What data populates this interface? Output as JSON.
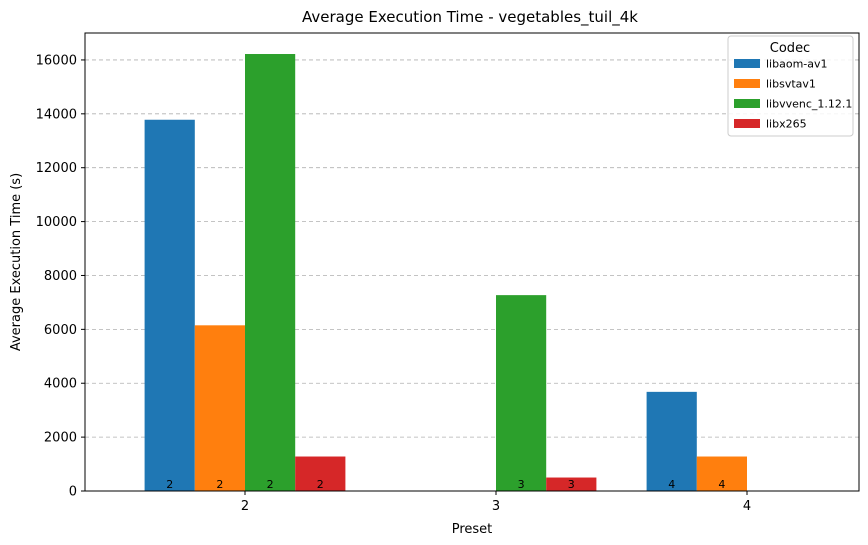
{
  "chart_data": {
    "type": "bar",
    "title": "Average Execution Time - vegetables_tuil_4k",
    "xlabel": "Preset",
    "ylabel": "Average Execution Time (s)",
    "categories": [
      "2",
      "3",
      "4"
    ],
    "ylim": [
      0,
      17000
    ],
    "yticks": [
      0,
      2000,
      4000,
      6000,
      8000,
      10000,
      12000,
      14000,
      16000
    ],
    "grid": "y-dashed",
    "legend": {
      "title": "Codec",
      "placement": "top-right"
    },
    "series": [
      {
        "name": "libaom-av1",
        "color": "#1f77b4",
        "values": [
          13780,
          null,
          3680
        ],
        "labels": [
          "2",
          "",
          "4"
        ]
      },
      {
        "name": "libsvtav1",
        "color": "#ff7f0e",
        "values": [
          6150,
          null,
          1280
        ],
        "labels": [
          "2",
          "",
          "4"
        ]
      },
      {
        "name": "libvvenc_1.12.1",
        "color": "#2ca02c",
        "values": [
          16220,
          7270,
          null
        ],
        "labels": [
          "2",
          "3",
          ""
        ]
      },
      {
        "name": "libx265",
        "color": "#d62728",
        "values": [
          1280,
          500,
          null
        ],
        "labels": [
          "2",
          "3",
          ""
        ]
      }
    ]
  }
}
